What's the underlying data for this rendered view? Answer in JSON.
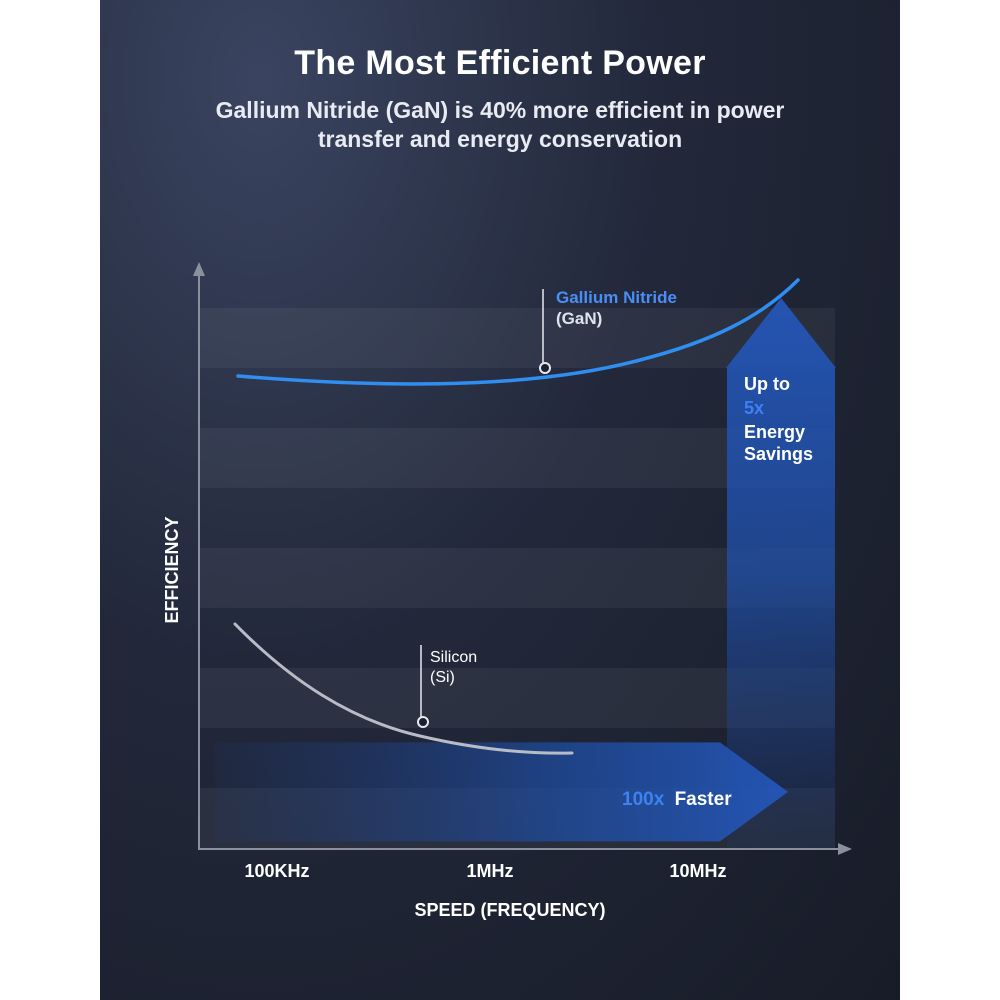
{
  "header": {
    "title": "The Most Efficient Power",
    "subtitle_line1": "Gallium Nitride (GaN) is 40% more efficient in power",
    "subtitle_line2": "transfer and energy conservation"
  },
  "chart_data": {
    "type": "line",
    "xlabel": "SPEED (FREQUENCY)",
    "ylabel": "EFFICIENCY",
    "x_scale": "log",
    "x_ticks": [
      "100KHz",
      "1MHz",
      "10MHz"
    ],
    "grid": "horizontal bands",
    "series": [
      {
        "name": "Gallium Nitride (GaN)",
        "label_line1": "Gallium Nitride",
        "label_line2": "(GaN)",
        "trend": "high and rising with frequency",
        "color": "#2f8ef0"
      },
      {
        "name": "Silicon (Si)",
        "label_line1": "Silicon",
        "label_line2": "(Si)",
        "trend": "low and falling with frequency",
        "color": "#b8bcc6"
      }
    ],
    "annotations": {
      "vertical_arrow_line1": "Up to",
      "vertical_arrow_highlight": "5x",
      "vertical_arrow_line3": "Energy",
      "vertical_arrow_line4": "Savings",
      "horizontal_arrow_highlight": "100x",
      "horizontal_arrow_text": "Faster"
    },
    "colors": {
      "accent": "#4a8ef5",
      "arrow": "#1f4fa8"
    }
  }
}
